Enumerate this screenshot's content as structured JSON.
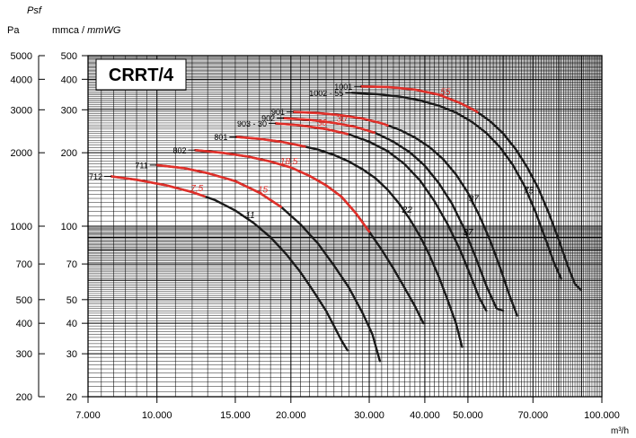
{
  "header": {
    "psf": "Psf",
    "pa": "Pa",
    "mmca": "mmca / ",
    "mmwg": "mmWG",
    "xunit": "m³/h"
  },
  "badge": {
    "label": "CRRT/4"
  },
  "colors": {
    "curve": "#1a1a1a",
    "power_curve": "#e0302a",
    "grid": "#000000"
  },
  "chart_data": {
    "type": "line",
    "x_scale": "log",
    "y_scale": "log",
    "xlabel": "m³/h",
    "ylabel": "mmca / mmWG",
    "xlim": [
      7000,
      100000
    ],
    "ylim": [
      20,
      500
    ],
    "x_ticks": [
      7000,
      10000,
      15000,
      20000,
      30000,
      40000,
      50000,
      70000,
      100000
    ],
    "x_tick_labels": [
      "7.000",
      "10.000",
      "15.000",
      "20.000",
      "30.000",
      "40.000",
      "50.000",
      "70.000",
      "100.000"
    ],
    "y_ticks": [
      20,
      30,
      40,
      50,
      70,
      100,
      200,
      300,
      400,
      500
    ],
    "y_tick_labels": [
      "20",
      "30",
      "40",
      "50",
      "70",
      "100",
      "200",
      "300",
      "400",
      "500"
    ],
    "pa_ticks": [
      200,
      300,
      400,
      500,
      700,
      1000,
      2000,
      3000,
      4000,
      5000
    ],
    "pa_tick_labels": [
      "200",
      "300",
      "400",
      "500",
      "700",
      "1000",
      "2000",
      "3000",
      "4000",
      "5000"
    ],
    "grid": true,
    "series": [
      {
        "name": "712",
        "power_labels": [
          "7,5",
          "11"
        ],
        "points": [
          [
            7900,
            160
          ],
          [
            9000,
            155
          ],
          [
            10500,
            147
          ],
          [
            12000,
            138
          ],
          [
            13500,
            128
          ],
          [
            15000,
            116
          ],
          [
            16500,
            103
          ],
          [
            18000,
            90
          ],
          [
            19500,
            77
          ],
          [
            21000,
            65
          ],
          [
            22500,
            54
          ],
          [
            24000,
            45
          ],
          [
            25000,
            39
          ],
          [
            26000,
            34
          ],
          [
            26800,
            31
          ]
        ],
        "red_to": 12800
      },
      {
        "name": "711",
        "power_labels": [
          "15"
        ],
        "points": [
          [
            10000,
            178
          ],
          [
            11500,
            173
          ],
          [
            13000,
            165
          ],
          [
            15000,
            153
          ],
          [
            17000,
            137
          ],
          [
            19000,
            120
          ],
          [
            21000,
            102
          ],
          [
            23000,
            85
          ],
          [
            25000,
            69
          ],
          [
            27000,
            56
          ],
          [
            29000,
            44
          ],
          [
            30500,
            36
          ],
          [
            31700,
            28
          ]
        ],
        "red_to": 19000
      },
      {
        "name": "802",
        "power_labels": [
          "18,5"
        ],
        "points": [
          [
            12200,
            205
          ],
          [
            14000,
            200
          ],
          [
            16000,
            193
          ],
          [
            18000,
            184
          ],
          [
            20000,
            174
          ],
          [
            22000,
            161
          ],
          [
            24000,
            147
          ],
          [
            26000,
            132
          ],
          [
            28000,
            113
          ],
          [
            30000,
            95
          ],
          [
            32000,
            80
          ],
          [
            34000,
            67
          ],
          [
            36000,
            56
          ],
          [
            38000,
            47
          ],
          [
            39700,
            40
          ]
        ],
        "red_to": 30000
      },
      {
        "name": "801",
        "power_labels": [
          "22"
        ],
        "points": [
          [
            15100,
            232
          ],
          [
            17000,
            228
          ],
          [
            19000,
            222
          ],
          [
            21000,
            214
          ],
          [
            23000,
            206
          ],
          [
            25000,
            196
          ],
          [
            27000,
            184
          ],
          [
            29000,
            171
          ],
          [
            31000,
            157
          ],
          [
            33000,
            141
          ],
          [
            35000,
            124
          ],
          [
            37000,
            107
          ],
          [
            39000,
            91
          ],
          [
            41000,
            76
          ],
          [
            43000,
            62
          ],
          [
            45000,
            50
          ],
          [
            47000,
            40
          ],
          [
            48500,
            32
          ]
        ],
        "red_to": 21500
      },
      {
        "name": "903 - 30",
        "power_labels": [
          "30"
        ],
        "points": [
          [
            18500,
            264
          ],
          [
            21000,
            259
          ],
          [
            24000,
            250
          ],
          [
            27000,
            238
          ],
          [
            30000,
            222
          ],
          [
            33000,
            203
          ],
          [
            36000,
            180
          ],
          [
            39000,
            154
          ],
          [
            42000,
            127
          ],
          [
            45000,
            102
          ],
          [
            48000,
            80
          ],
          [
            51000,
            61
          ],
          [
            53000,
            51
          ],
          [
            55000,
            45
          ]
        ],
        "red_to": 26800
      },
      {
        "name": "902",
        "power_labels": [
          "30",
          "37"
        ],
        "points": [
          [
            19300,
            277
          ],
          [
            22000,
            273
          ],
          [
            25000,
            265
          ],
          [
            28000,
            255
          ],
          [
            31000,
            241
          ],
          [
            34000,
            222
          ],
          [
            37000,
            201
          ],
          [
            40000,
            177
          ],
          [
            43000,
            150
          ],
          [
            46000,
            124
          ],
          [
            49000,
            98
          ],
          [
            52000,
            75
          ],
          [
            55000,
            57
          ],
          [
            58000,
            46
          ],
          [
            60000,
            45
          ]
        ],
        "red_to": 30800
      },
      {
        "name": "901",
        "power_labels": [
          "37"
        ],
        "points": [
          [
            20300,
            294
          ],
          [
            23000,
            291
          ],
          [
            26000,
            285
          ],
          [
            29000,
            276
          ],
          [
            32000,
            264
          ],
          [
            35000,
            249
          ],
          [
            38000,
            231
          ],
          [
            41000,
            211
          ],
          [
            44000,
            188
          ],
          [
            47000,
            163
          ],
          [
            50000,
            137
          ],
          [
            53000,
            111
          ],
          [
            56000,
            88
          ],
          [
            59000,
            68
          ],
          [
            62000,
            52
          ],
          [
            64500,
            43
          ]
        ],
        "red_to": 33000
      },
      {
        "name": "1002 - 55",
        "power_labels": [
          "75"
        ],
        "points": [
          [
            27500,
            352
          ],
          [
            31000,
            348
          ],
          [
            35000,
            340
          ],
          [
            39000,
            328
          ],
          [
            43000,
            312
          ],
          [
            47000,
            292
          ],
          [
            51000,
            268
          ],
          [
            55000,
            241
          ],
          [
            59000,
            211
          ],
          [
            63000,
            179
          ],
          [
            67000,
            146
          ],
          [
            71000,
            114
          ],
          [
            75000,
            87
          ],
          [
            78000,
            71
          ],
          [
            81000,
            61
          ]
        ],
        "red_to": null
      },
      {
        "name": "1001",
        "power_labels": [
          "55"
        ],
        "points": [
          [
            28800,
            374
          ],
          [
            33000,
            372
          ],
          [
            38000,
            363
          ],
          [
            43000,
            346
          ],
          [
            48000,
            320
          ],
          [
            52000,
            297
          ],
          [
            56000,
            270
          ],
          [
            60000,
            240
          ],
          [
            64000,
            207
          ],
          [
            68000,
            174
          ],
          [
            72000,
            143
          ],
          [
            76000,
            113
          ],
          [
            80000,
            88
          ],
          [
            84000,
            68
          ],
          [
            87000,
            58
          ],
          [
            89500,
            55
          ]
        ],
        "red_to": 52500
      }
    ]
  }
}
